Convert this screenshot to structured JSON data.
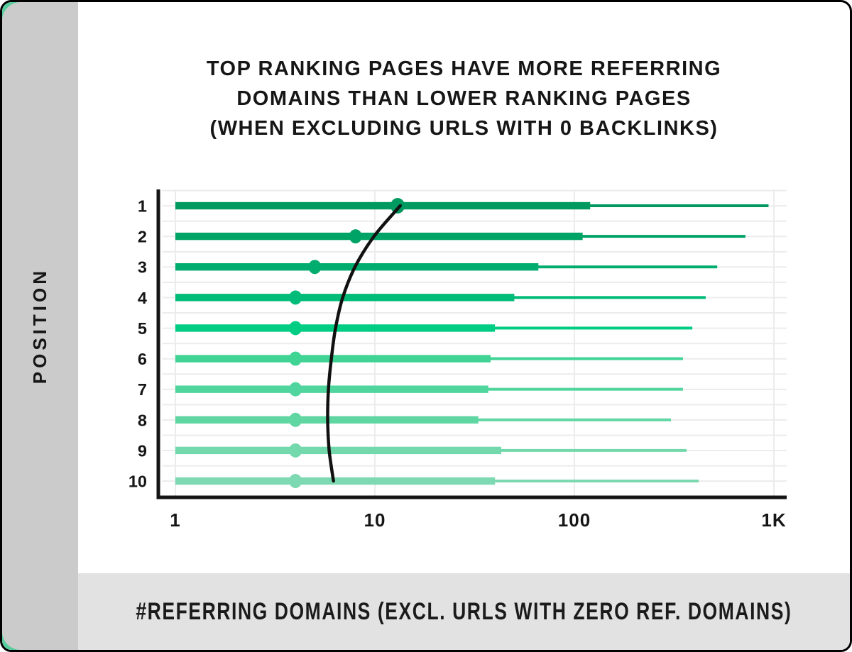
{
  "frame": {
    "border_color": "#000000",
    "sidebar_color": "#cbcbcb",
    "footer_color": "#e2e2e2",
    "accent_color": "#57cc9c",
    "gridline_color": "#ececec",
    "axis_color": "#141414",
    "text_color": "#161616"
  },
  "chart_data": {
    "type": "bar",
    "orientation": "horizontal",
    "x_scale": "log",
    "grid": true,
    "title": "TOP RANKING PAGES HAVE MORE REFERRING DOMAINS THAN LOWER RANKING PAGES (WHEN EXCLUDING URLS WITH 0 BACKLINKS)",
    "title_lines": [
      "TOP RANKING PAGES HAVE MORE REFERRING",
      "DOMAINS THAN LOWER RANKING PAGES",
      "(WHEN EXCLUDING URLS WITH 0 BACKLINKS)"
    ],
    "ylabel": "POSITION",
    "xlabel": "#REFERRING DOMAINS (EXCL. URLS WITH ZERO REF. DOMAINS)",
    "xlim": [
      1,
      1000
    ],
    "x_ticks": [
      {
        "label": "1",
        "value": 1
      },
      {
        "label": "10",
        "value": 10
      },
      {
        "label": "100",
        "value": 100
      },
      {
        "label": "1K",
        "value": 1000
      }
    ],
    "positions": [
      "1",
      "2",
      "3",
      "4",
      "5",
      "6",
      "7",
      "8",
      "9",
      "10"
    ],
    "series": [
      {
        "name": "median-dot",
        "values": [
          13,
          8,
          5,
          4,
          4,
          4,
          4,
          4,
          4,
          4
        ]
      },
      {
        "name": "thick-bar-end",
        "values": [
          120,
          110,
          66,
          50,
          40,
          38,
          37,
          33,
          43,
          40
        ]
      },
      {
        "name": "whisker-end",
        "values": [
          940,
          720,
          520,
          455,
          390,
          350,
          350,
          305,
          365,
          420
        ]
      }
    ],
    "trend_line_values": [
      13.4,
      9.9,
      7.95,
      6.9,
      6.35,
      6.05,
      5.85,
      5.8,
      5.9,
      6.2
    ],
    "trend_color": "#111111",
    "bar_colors": [
      "#009a60",
      "#00a366",
      "#00ad6e",
      "#00bc78",
      "#00cd84",
      "#3fd394",
      "#4fd59d",
      "#60d6a3",
      "#73d8ab",
      "#7dd9b1"
    ]
  }
}
